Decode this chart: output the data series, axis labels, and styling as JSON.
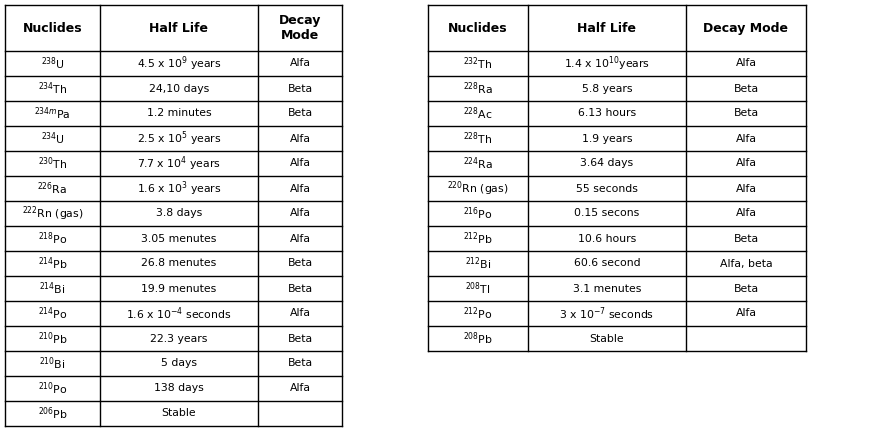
{
  "left_table": {
    "headers": [
      "Nuclides",
      "Half Life",
      "Decay\nMode"
    ],
    "rows": [
      [
        "$^{238}$U",
        "4.5 x 10$^{9}$ years",
        "Alfa"
      ],
      [
        "$^{234}$Th",
        "24,10 days",
        "Beta"
      ],
      [
        "$^{234m}$Pa",
        "1.2 minutes",
        "Beta"
      ],
      [
        "$^{234}$U",
        "2.5 x 10$^{5}$ years",
        "Alfa"
      ],
      [
        "$^{230}$Th",
        "7.7 x 10$^{4}$ years",
        "Alfa"
      ],
      [
        "$^{226}$Ra",
        "1.6 x 10$^{3}$ years",
        "Alfa"
      ],
      [
        "$^{222}$Rn (gas)",
        "3.8 days",
        "Alfa"
      ],
      [
        "$^{218}$Po",
        "3.05 menutes",
        "Alfa"
      ],
      [
        "$^{214}$Pb",
        "26.8 menutes",
        "Beta"
      ],
      [
        "$^{214}$Bi",
        "19.9 menutes",
        "Beta"
      ],
      [
        "$^{214}$Po",
        "1.6 x 10$^{-4}$ seconds",
        "Alfa"
      ],
      [
        "$^{210}$Pb",
        "22.3 years",
        "Beta"
      ],
      [
        "$^{210}$Bi",
        "5 days",
        "Beta"
      ],
      [
        "$^{210}$Po",
        "138 days",
        "Alfa"
      ],
      [
        "$^{206}$Pb",
        "Stable",
        ""
      ]
    ]
  },
  "right_table": {
    "headers": [
      "Nuclides",
      "Half Life",
      "Decay Mode"
    ],
    "rows": [
      [
        "$^{232}$Th",
        "1.4 x 10$^{10}$years",
        "Alfa"
      ],
      [
        "$^{228}$Ra",
        "5.8 years",
        "Beta"
      ],
      [
        "$^{228}$Ac",
        "6.13 hours",
        "Beta"
      ],
      [
        "$^{228}$Th",
        "1.9 years",
        "Alfa"
      ],
      [
        "$^{224}$Ra",
        "3.64 days",
        "Alfa"
      ],
      [
        "$^{220}$Rn (gas)",
        "55 seconds",
        "Alfa"
      ],
      [
        "$^{216}$Po",
        "0.15 secons",
        "Alfa"
      ],
      [
        "$^{212}$Pb",
        "10.6 hours",
        "Beta"
      ],
      [
        "$^{212}$Bi",
        "60.6 second",
        "Alfa, beta"
      ],
      [
        "$^{208}$Tl",
        "3.1 menutes",
        "Beta"
      ],
      [
        "$^{212}$Po",
        "3 x 10$^{-7}$ seconds",
        "Alfa"
      ],
      [
        "$^{208}$Pb",
        "Stable",
        ""
      ]
    ]
  },
  "background_color": "#ffffff",
  "font_size": 7.8,
  "header_font_size": 9.0
}
